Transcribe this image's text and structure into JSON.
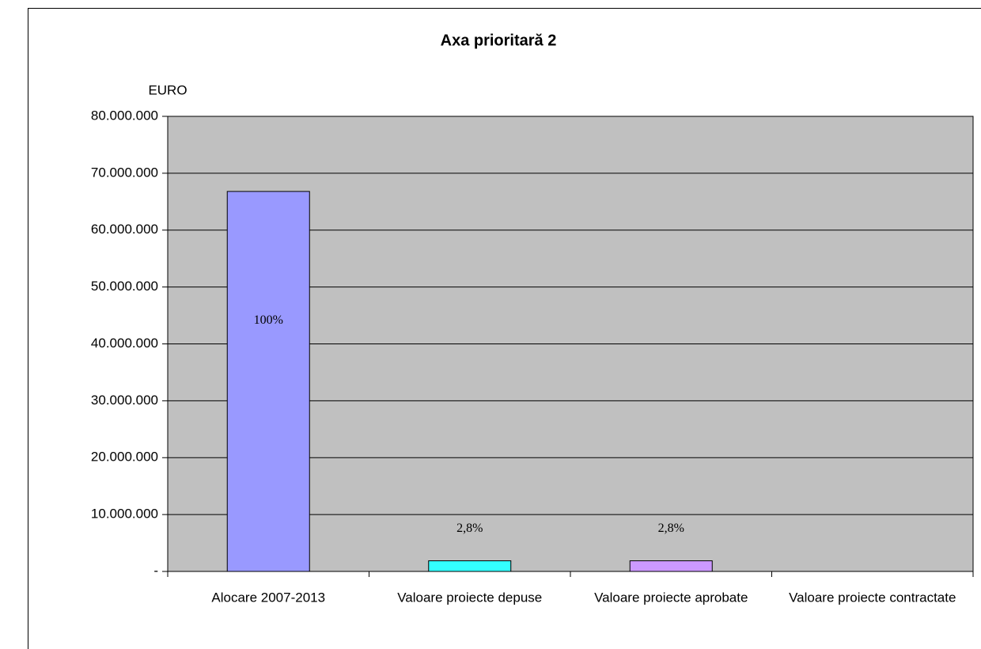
{
  "chart_data": {
    "type": "bar",
    "title": "Axa prioritară 2",
    "y_label": "EURO",
    "categories": [
      "Alocare 2007-2013",
      "Valoare proiecte depuse",
      "Valoare proiecte aprobate",
      "Valoare proiecte contractate"
    ],
    "values": [
      66800000,
      1870000,
      1870000,
      0
    ],
    "colors": [
      "#9999ff",
      "#33ffff",
      "#cc99ff",
      "#ffffff"
    ],
    "annotations": [
      "100%",
      "2,8%",
      "2,8%",
      null
    ],
    "ylim": [
      0,
      80000000
    ],
    "yticks": [
      {
        "value": 0,
        "label": "-"
      },
      {
        "value": 10000000,
        "label": "10.000.000"
      },
      {
        "value": 20000000,
        "label": "20.000.000"
      },
      {
        "value": 30000000,
        "label": "30.000.000"
      },
      {
        "value": 40000000,
        "label": "40.000.000"
      },
      {
        "value": 50000000,
        "label": "50.000.000"
      },
      {
        "value": 60000000,
        "label": "60.000.000"
      },
      {
        "value": 70000000,
        "label": "70.000.000"
      },
      {
        "value": 80000000,
        "label": "80.000.000"
      }
    ],
    "grid": true,
    "plot_background": "#c0c0c0"
  }
}
